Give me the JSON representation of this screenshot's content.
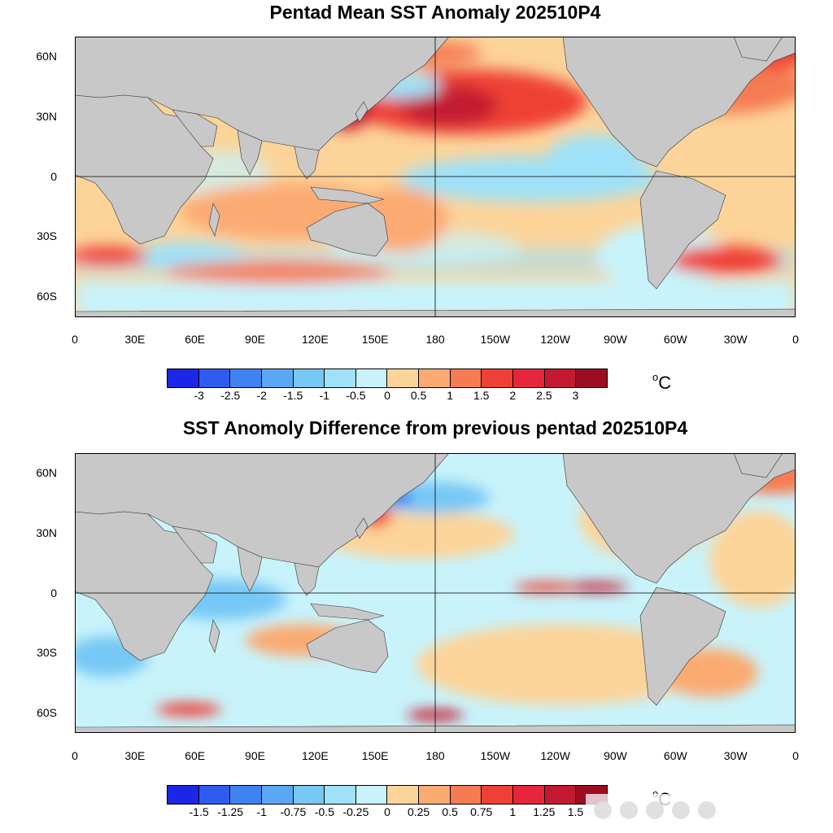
{
  "map1": {
    "title": "Pentad Mean SST Anomaly 202510P4",
    "colorbar": {
      "ticks": [
        "-3",
        "-2.5",
        "-2",
        "-1.5",
        "-1",
        "-0.5",
        "0",
        "0.5",
        "1",
        "1.5",
        "2",
        "2.5",
        "3"
      ],
      "colors": [
        "#1c26e6",
        "#2e5cf0",
        "#3f83f2",
        "#5ba7f5",
        "#77c8f5",
        "#9ee1f8",
        "#c8f3fb",
        "#fcd49a",
        "#fbaa72",
        "#f57b52",
        "#ef4036",
        "#e8263b",
        "#c41a31",
        "#9c0d22"
      ],
      "unit": "C"
    }
  },
  "map2": {
    "title": "SST Anomoly Difference from previous pentad 202510P4",
    "colorbar": {
      "ticks": [
        "-1.5",
        "-1.25",
        "-1",
        "-0.75",
        "-0.5",
        "-0.25",
        "0",
        "0.25",
        "0.5",
        "0.75",
        "1",
        "1.25",
        "1.5"
      ],
      "colors": [
        "#1c26e6",
        "#2e5cf0",
        "#3f83f2",
        "#5ba7f5",
        "#77c8f5",
        "#9ee1f8",
        "#c8f3fb",
        "#fcd49a",
        "#fbaa72",
        "#f57b52",
        "#ef4036",
        "#e8263b",
        "#c41a31",
        "#9c0d22"
      ],
      "unit": "C"
    }
  },
  "axes": {
    "lat_labels": [
      "60N",
      "30N",
      "0",
      "30S",
      "60S"
    ],
    "lon_labels": [
      "0",
      "30E",
      "60E",
      "90E",
      "120E",
      "150E",
      "180",
      "150W",
      "120W",
      "90W",
      "60W",
      "30W",
      "0"
    ]
  },
  "colors": {
    "land": "#c8c8c8",
    "ocean_base": "#fcd49a"
  }
}
